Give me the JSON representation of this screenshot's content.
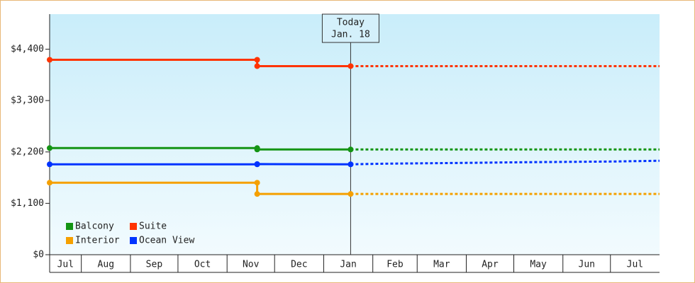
{
  "chart_data": {
    "type": "step-line",
    "xlim": [
      0,
      385
    ],
    "xticks": [
      {
        "value": 0,
        "label": "Jul"
      },
      {
        "value": 20,
        "label": "Aug"
      },
      {
        "value": 51,
        "label": "Sep"
      },
      {
        "value": 81,
        "label": "Oct"
      },
      {
        "value": 112,
        "label": "Nov"
      },
      {
        "value": 142,
        "label": "Dec"
      },
      {
        "value": 173,
        "label": "Jan"
      },
      {
        "value": 204,
        "label": "Feb"
      },
      {
        "value": 232,
        "label": "Mar"
      },
      {
        "value": 263,
        "label": "Apr"
      },
      {
        "value": 293,
        "label": "May"
      },
      {
        "value": 324,
        "label": "Jun"
      },
      {
        "value": 354,
        "label": "Jul"
      }
    ],
    "ylim": [
      0,
      5150
    ],
    "yticks": [
      {
        "value": 0,
        "label": "$0"
      },
      {
        "value": 1100,
        "label": "$1,100"
      },
      {
        "value": 2200,
        "label": "$2,200"
      },
      {
        "value": 3300,
        "label": "$3,300"
      },
      {
        "value": 4400,
        "label": "$4,400"
      }
    ],
    "today": {
      "x": 190,
      "label": [
        "Today",
        "Jan. 18"
      ]
    },
    "series": [
      {
        "name": "Balcony",
        "color": "#149414",
        "x": [
          0,
          131,
          131,
          190
        ],
        "values": [
          2283,
          2283,
          2253,
          2253
        ],
        "forecast": {
          "x": [
            190,
            385
          ],
          "values": [
            2253,
            2253
          ]
        }
      },
      {
        "name": "Suite",
        "color": "#ff3300",
        "x": [
          0,
          131,
          131,
          190
        ],
        "values": [
          4173,
          4173,
          4037,
          4037
        ],
        "forecast": {
          "x": [
            190,
            385
          ],
          "values": [
            4037,
            4037
          ]
        }
      },
      {
        "name": "Interior",
        "color": "#f5a000",
        "x": [
          0,
          131,
          131,
          190
        ],
        "values": [
          1542,
          1542,
          1300,
          1300
        ],
        "forecast": {
          "x": [
            190,
            385
          ],
          "values": [
            1300,
            1300
          ]
        }
      },
      {
        "name": "Ocean View",
        "color": "#0033ff",
        "x": [
          0,
          131,
          131,
          190
        ],
        "values": [
          1935,
          1935,
          1940,
          1935
        ],
        "forecast": {
          "x": [
            190,
            215,
            260,
            300,
            355,
            385
          ],
          "values": [
            1935,
            1950,
            1965,
            1980,
            1995,
            2011
          ]
        }
      }
    ]
  }
}
